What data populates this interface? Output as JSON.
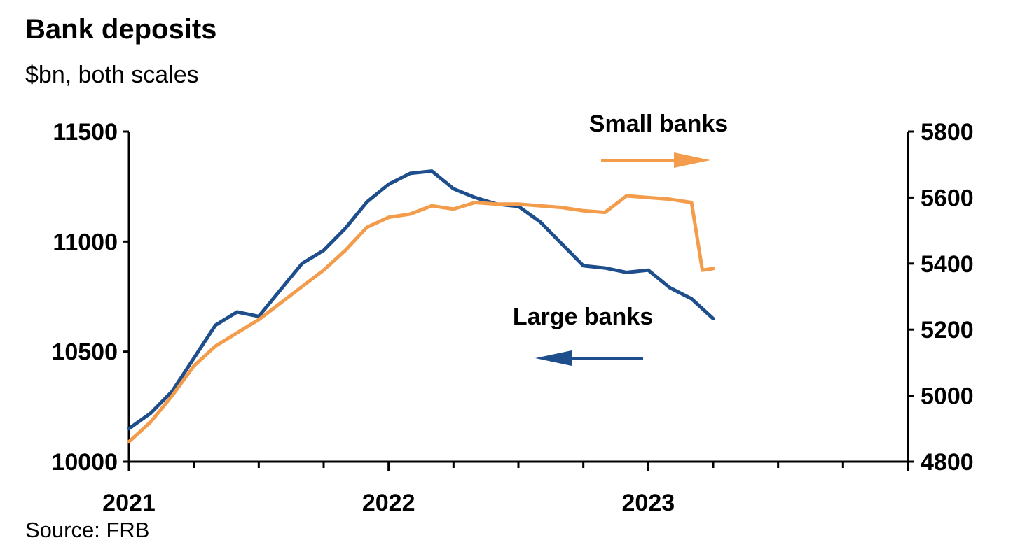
{
  "title": "Bank deposits",
  "subtitle": "$bn, both scales",
  "source": "Source: FRB",
  "chart_data": {
    "type": "line",
    "title": "Bank deposits",
    "subtitle": "$bn, both scales",
    "x_ticks": [
      "2021",
      "2022",
      "2023"
    ],
    "left_axis": {
      "ylim": [
        10000,
        11500
      ],
      "ticks": [
        "10000",
        "10500",
        "11000",
        "11500"
      ]
    },
    "right_axis": {
      "ylim": [
        4800,
        5800
      ],
      "ticks": [
        "4800",
        "5000",
        "5200",
        "5400",
        "5600",
        "5800"
      ]
    },
    "xlim": [
      "2021-01",
      "2024-01"
    ],
    "grid": false,
    "annotations": {
      "small_arrow": "right",
      "large_arrow": "left"
    },
    "series": [
      {
        "name": "Large banks",
        "axis": "left",
        "color": "#1f4e8c",
        "x": [
          "2021-01",
          "2021-02",
          "2021-03",
          "2021-04",
          "2021-05",
          "2021-06",
          "2021-07",
          "2021-08",
          "2021-09",
          "2021-10",
          "2021-11",
          "2021-12",
          "2022-01",
          "2022-02",
          "2022-03",
          "2022-04",
          "2022-05",
          "2022-06",
          "2022-07",
          "2022-08",
          "2022-09",
          "2022-10",
          "2022-11",
          "2022-12",
          "2023-01",
          "2023-02",
          "2023-03",
          "2023-04"
        ],
        "values": [
          10150,
          10220,
          10320,
          10470,
          10620,
          10680,
          10660,
          10780,
          10900,
          10960,
          11060,
          11180,
          11260,
          11310,
          11320,
          11240,
          11200,
          11170,
          11160,
          11090,
          10990,
          10890,
          10880,
          10860,
          10870,
          10790,
          10740,
          10650
        ]
      },
      {
        "name": "Small banks",
        "axis": "right",
        "color": "#f39c4c",
        "x": [
          "2021-01",
          "2021-02",
          "2021-03",
          "2021-04",
          "2021-05",
          "2021-06",
          "2021-07",
          "2021-08",
          "2021-09",
          "2021-10",
          "2021-11",
          "2021-12",
          "2022-01",
          "2022-02",
          "2022-03",
          "2022-04",
          "2022-05",
          "2022-06",
          "2022-07",
          "2022-08",
          "2022-09",
          "2022-10",
          "2022-11",
          "2022-12",
          "2023-01",
          "2023-02",
          "2023-03",
          "2023-03b",
          "2023-04"
        ],
        "values": [
          4860,
          4920,
          5000,
          5090,
          5150,
          5190,
          5230,
          5280,
          5330,
          5380,
          5440,
          5510,
          5540,
          5550,
          5575,
          5565,
          5585,
          5580,
          5580,
          5575,
          5570,
          5560,
          5555,
          5605,
          5600,
          5595,
          5585,
          5380,
          5385
        ]
      }
    ]
  }
}
